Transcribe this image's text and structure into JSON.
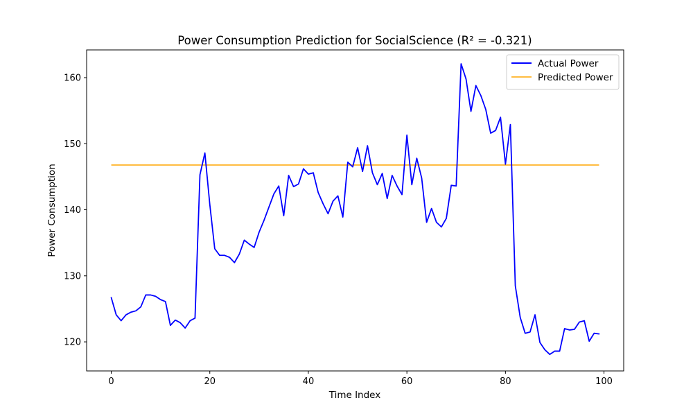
{
  "chart_data": {
    "type": "line",
    "title": "Power Consumption Prediction for SocialScience (R² = -0.321)",
    "xlabel": "Time Index",
    "ylabel": "Power Consumption",
    "xlim": [
      -5,
      104
    ],
    "ylim": [
      115.6,
      164.2
    ],
    "x_ticks": [
      0,
      20,
      40,
      60,
      80,
      100
    ],
    "x_tick_labels": [
      "0",
      "20",
      "40",
      "60",
      "80",
      "100"
    ],
    "y_ticks": [
      120,
      130,
      140,
      150,
      160
    ],
    "y_tick_labels": [
      "120",
      "130",
      "140",
      "150",
      "160"
    ],
    "grid": false,
    "legend_position": "upper right",
    "series": [
      {
        "name": "Actual Power",
        "color": "#0000ff",
        "x_start": 0,
        "values": [
          126.7,
          124.1,
          123.2,
          124.1,
          124.5,
          124.7,
          125.3,
          127.1,
          127.1,
          126.9,
          126.4,
          126.1,
          122.5,
          123.3,
          122.9,
          122.1,
          123.2,
          123.6,
          145.3,
          148.6,
          140.8,
          134.1,
          133.1,
          133.1,
          132.8,
          132.0,
          133.3,
          135.4,
          134.8,
          134.3,
          136.6,
          138.4,
          140.4,
          142.4,
          143.6,
          139.1,
          145.2,
          143.5,
          143.9,
          146.2,
          145.4,
          145.6,
          142.6,
          140.9,
          139.4,
          141.3,
          142.1,
          138.9,
          147.2,
          146.5,
          149.4,
          145.8,
          149.7,
          145.6,
          143.8,
          145.5,
          141.7,
          145.2,
          143.6,
          142.3,
          151.3,
          143.8,
          147.8,
          144.8,
          138.1,
          140.2,
          138.1,
          137.4,
          138.7,
          143.7,
          143.6,
          162.1,
          159.8,
          154.9,
          158.8,
          157.3,
          155.2,
          151.6,
          152.0,
          154.0,
          146.9,
          152.9,
          128.5,
          123.7,
          121.3,
          121.5,
          124.1,
          119.9,
          118.8,
          118.1,
          118.6,
          118.6,
          122.0,
          121.8,
          121.9,
          123.0,
          123.2,
          120.1,
          121.3,
          121.2
        ]
      },
      {
        "name": "Predicted Power",
        "color": "#ffa500",
        "x_start": 0,
        "x_end": 99,
        "constant_value": 146.78
      }
    ]
  }
}
